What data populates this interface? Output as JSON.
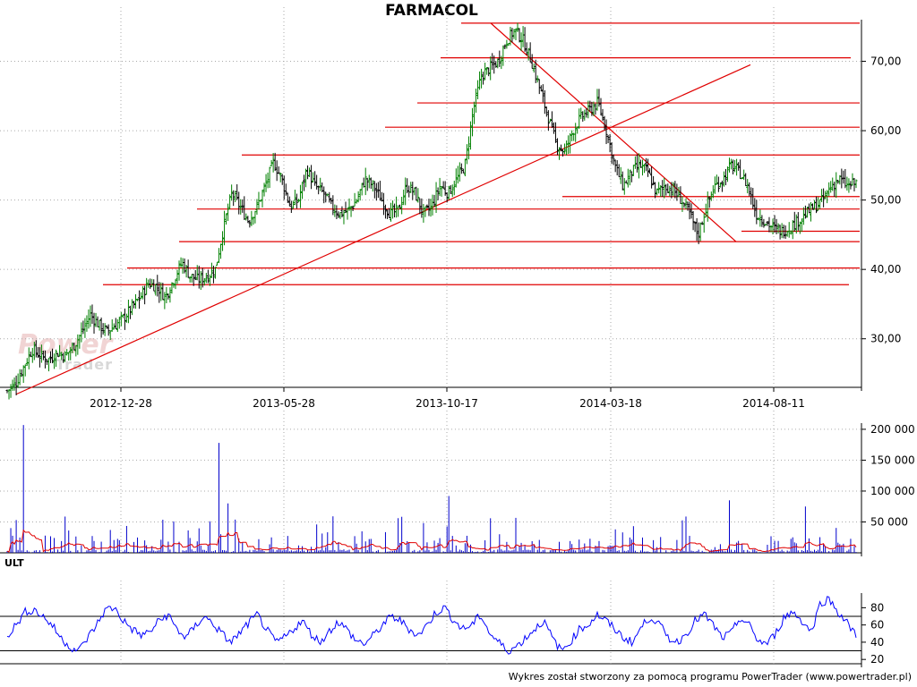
{
  "title": "FARMACOL",
  "footer": "Wykres został stworzony za pomocą programu PowerTrader (www.powertrader.pl)",
  "watermark": {
    "line1": "Power",
    "line2": "Trader"
  },
  "colors": {
    "up": "#008000",
    "down": "#000000",
    "lines": "#e00000",
    "volume": "#0000cc",
    "ult": "#0000ff",
    "grid": "#aaaaaa"
  },
  "chart_data": [
    {
      "type": "candlestick",
      "title": "FARMACOL",
      "x_tick_labels": [
        "2012-12-28",
        "2013-05-28",
        "2013-10-17",
        "2014-03-18",
        "2014-08-11"
      ],
      "y_tick_labels": [
        "30,00",
        "40,00",
        "50,00",
        "60,00",
        "70,00"
      ],
      "ylim": [
        23,
        76
      ],
      "grid": true,
      "close_series": [
        22.5,
        23.5,
        26,
        28.5,
        27.5,
        27,
        28,
        27.5,
        29,
        31,
        33.5,
        32,
        31,
        32,
        33,
        34.5,
        36,
        38,
        37.5,
        36,
        38.5,
        41,
        39,
        38.5,
        39,
        40,
        46,
        51,
        49,
        47,
        49,
        52,
        55.5,
        53,
        49,
        50,
        54.5,
        52,
        51,
        49,
        48,
        48.5,
        50,
        53,
        52,
        50,
        48,
        48.5,
        52,
        51,
        48,
        49,
        52,
        51,
        53,
        55,
        63,
        68,
        69,
        70,
        73,
        74.5,
        73,
        70,
        66,
        62,
        58,
        57,
        60,
        62,
        63,
        64,
        60,
        55,
        52,
        54,
        55,
        54,
        51,
        52,
        51.5,
        50,
        48,
        45,
        49,
        52,
        53,
        55,
        54,
        52,
        48,
        47,
        46,
        45.5,
        46,
        47,
        48,
        49,
        50,
        52,
        53,
        52,
        52.5
      ],
      "horizontal_lines": [
        75.5,
        70.5,
        64,
        60.5,
        56.5,
        50.5,
        48.7,
        45.5,
        44,
        40.2,
        37.8
      ],
      "trendlines": [
        {
          "from": [
            "2012-08",
            22
          ],
          "to": [
            "2014-09",
            69.5
          ]
        },
        {
          "from": [
            "2013-11",
            75.5
          ],
          "to": [
            "2014-07",
            44
          ]
        }
      ]
    },
    {
      "type": "bar",
      "name": "volume",
      "y_tick_labels": [
        "50 000",
        "100 000",
        "150 000",
        "200 000"
      ],
      "ylim": [
        0,
        210000
      ],
      "spikes": [
        {
          "at": 0.02,
          "value": 207000
        },
        {
          "at": 0.25,
          "value": 178000
        },
        {
          "at": 0.26,
          "value": 80000
        },
        {
          "at": 0.52,
          "value": 92000
        },
        {
          "at": 0.85,
          "value": 85000
        },
        {
          "at": 0.94,
          "value": 75000
        }
      ],
      "average_color": "#e00000"
    },
    {
      "type": "line",
      "name": "ULT",
      "label": "ULT",
      "y_tick_labels": [
        "20",
        "40",
        "60",
        "80"
      ],
      "ylim": [
        15,
        97
      ],
      "reference_lines": [
        70,
        30
      ],
      "values": [
        48,
        60,
        75,
        78,
        70,
        60,
        45,
        35,
        30,
        45,
        60,
        78,
        80,
        65,
        55,
        48,
        52,
        65,
        72,
        55,
        45,
        58,
        70,
        62,
        50,
        40,
        50,
        62,
        72,
        55,
        40,
        45,
        55,
        65,
        50,
        40,
        52,
        64,
        55,
        42,
        38,
        48,
        60,
        70,
        65,
        55,
        48,
        60,
        75,
        80,
        65,
        55,
        60,
        72,
        50,
        40,
        30,
        35,
        45,
        55,
        65,
        45,
        30,
        40,
        55,
        60,
        72,
        65,
        55,
        45,
        40,
        58,
        70,
        60,
        45,
        40,
        50,
        65,
        72,
        60,
        45,
        50,
        68,
        60,
        42,
        38,
        50,
        70,
        75,
        64,
        52,
        86,
        90,
        75,
        62,
        48
      ]
    }
  ]
}
